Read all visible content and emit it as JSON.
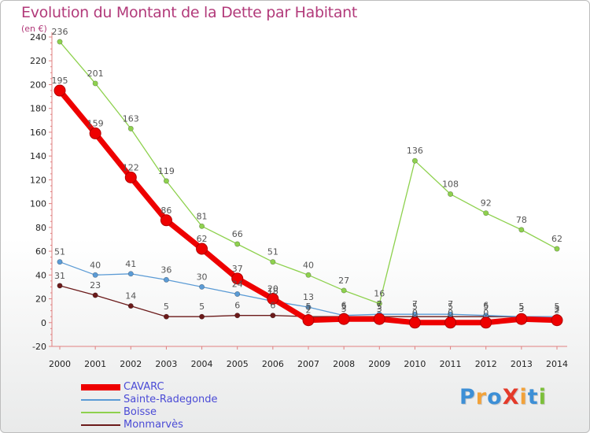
{
  "title": "Evolution du Montant de la Dette par Habitant",
  "unit_label": "(en €)",
  "logo": {
    "text": "ProXiti",
    "colors": [
      "#3d8fd6",
      "#f2a23a",
      "#3d8fd6",
      "#e43a2a",
      "#f2a23a",
      "#3d8fd6",
      "#7cbf3a"
    ]
  },
  "chart_data": {
    "type": "line",
    "title": "Evolution du Montant de la Dette par Habitant",
    "ylabel": "(en €)",
    "xlabel": "",
    "ylim": [
      -20,
      240
    ],
    "yticks": [
      -20,
      0,
      20,
      40,
      60,
      80,
      100,
      120,
      140,
      160,
      180,
      200,
      220,
      240
    ],
    "grid": false,
    "legend_position": "bottom-left",
    "x": [
      "2000",
      "2001",
      "2002",
      "2003",
      "2004",
      "2005",
      "2006",
      "2007",
      "2008",
      "2009",
      "2010",
      "2011",
      "2012",
      "2013",
      "2014"
    ],
    "series": [
      {
        "name": "CAVARC",
        "color": "#ee0000",
        "values": [
          195,
          159,
          122,
          86,
          62,
          37,
          20,
          2,
          3,
          3,
          0,
          0,
          0,
          3,
          2
        ]
      },
      {
        "name": "Sainte-Radegonde",
        "color": "#5b9bd5",
        "values": [
          51,
          40,
          41,
          36,
          30,
          24,
          18,
          13,
          6,
          7,
          7,
          7,
          6,
          5,
          5
        ]
      },
      {
        "name": "Boisse",
        "color": "#8ed14e",
        "values": [
          236,
          201,
          163,
          119,
          81,
          66,
          51,
          40,
          27,
          16,
          136,
          108,
          92,
          78,
          62
        ]
      },
      {
        "name": "Monmarvès",
        "color": "#6b1a1a",
        "values": [
          31,
          23,
          14,
          5,
          5,
          6,
          6,
          5,
          5,
          5,
          5,
          5,
          5,
          5,
          3
        ]
      }
    ]
  }
}
